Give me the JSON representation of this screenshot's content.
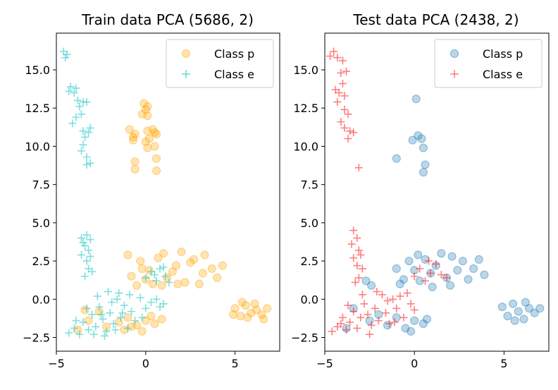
{
  "chart_data": [
    {
      "type": "scatter",
      "title": "Train data PCA (5686, 2)",
      "xlim": [
        -5.0,
        7.5
      ],
      "ylim": [
        -3.4,
        17.4
      ],
      "xticks": [
        -5,
        0,
        5
      ],
      "yticks": [
        -2.5,
        0.0,
        2.5,
        5.0,
        7.5,
        10.0,
        12.5,
        15.0
      ],
      "legend_position": "top-right",
      "series": [
        {
          "name": "Class p",
          "marker": "circle",
          "color": "#ffa500",
          "points": [
            [
              -0.8,
              1.5
            ],
            [
              -0.3,
              2.5
            ],
            [
              0.2,
              1.9
            ],
            [
              0.7,
              2.7
            ],
            [
              1.2,
              1.4
            ],
            [
              1.7,
              2.2
            ],
            [
              2.2,
              1.1
            ],
            [
              2.7,
              2.6
            ],
            [
              3.2,
              1.7
            ],
            [
              3.7,
              2.0
            ],
            [
              -0.5,
              0.9
            ],
            [
              0.4,
              1.0
            ],
            [
              1.0,
              3.0
            ],
            [
              2.0,
              3.1
            ],
            [
              3.0,
              1.0
            ],
            [
              4.0,
              1.4
            ],
            [
              -1.0,
              2.9
            ],
            [
              0.0,
              1.3
            ],
            [
              1.5,
              1.8
            ],
            [
              2.5,
              2.4
            ],
            [
              3.3,
              2.9
            ],
            [
              4.3,
              2.2
            ],
            [
              0.9,
              0.9
            ],
            [
              1.8,
              1.0
            ],
            [
              -0.2,
              2.0
            ],
            [
              -1.5,
              -1.5
            ],
            [
              -1.0,
              -1.2
            ],
            [
              -0.5,
              -1.7
            ],
            [
              0.0,
              -1.4
            ],
            [
              0.5,
              -1.6
            ],
            [
              0.9,
              -1.3
            ],
            [
              -1.2,
              -2.0
            ],
            [
              -0.2,
              -2.1
            ],
            [
              0.3,
              -1.1
            ],
            [
              -0.8,
              -1.8
            ],
            [
              -3.8,
              -2.0
            ],
            [
              -3.2,
              -1.4
            ],
            [
              -2.6,
              -0.8
            ],
            [
              -3.4,
              -0.7
            ],
            [
              -2.2,
              -1.8
            ],
            [
              5.0,
              -0.6
            ],
            [
              5.3,
              -1.1
            ],
            [
              5.6,
              -0.4
            ],
            [
              5.9,
              -0.9
            ],
            [
              6.2,
              -0.7
            ],
            [
              6.5,
              -1.0
            ],
            [
              6.8,
              -0.6
            ],
            [
              5.7,
              -1.2
            ],
            [
              6.1,
              -0.3
            ],
            [
              4.9,
              -1.0
            ],
            [
              6.6,
              -1.3
            ],
            [
              5.4,
              -0.2
            ],
            [
              -0.1,
              12.8
            ],
            [
              0.0,
              12.4
            ],
            [
              0.1,
              12.0
            ],
            [
              -0.2,
              12.1
            ],
            [
              0.1,
              12.6
            ],
            [
              -0.9,
              11.1
            ],
            [
              -0.6,
              10.8
            ],
            [
              -0.7,
              10.4
            ],
            [
              -0.6,
              9.0
            ],
            [
              -0.6,
              8.5
            ],
            [
              -0.7,
              10.6
            ],
            [
              0.0,
              10.3
            ],
            [
              0.2,
              10.5
            ],
            [
              0.1,
              11.0
            ],
            [
              0.4,
              11.1
            ],
            [
              0.6,
              10.8
            ],
            [
              0.5,
              10.0
            ],
            [
              0.6,
              9.2
            ],
            [
              0.6,
              8.4
            ],
            [
              0.5,
              10.9
            ],
            [
              0.1,
              9.9
            ]
          ]
        },
        {
          "name": "Class e",
          "marker": "plus",
          "color": "#00bfbf",
          "points": [
            [
              -4.6,
              16.2
            ],
            [
              -4.5,
              15.8
            ],
            [
              -4.4,
              16.0
            ],
            [
              -4.2,
              13.9
            ],
            [
              -4.3,
              13.6
            ],
            [
              -4.0,
              13.5
            ],
            [
              -3.9,
              13.8
            ],
            [
              -3.8,
              13.0
            ],
            [
              -3.7,
              12.6
            ],
            [
              -3.5,
              12.9
            ],
            [
              -3.3,
              12.9
            ],
            [
              -3.9,
              11.9
            ],
            [
              -3.6,
              12.1
            ],
            [
              -4.1,
              11.5
            ],
            [
              -3.5,
              11.0
            ],
            [
              -3.2,
              10.9
            ],
            [
              -3.1,
              11.2
            ],
            [
              -3.5,
              10.1
            ],
            [
              -3.6,
              9.7
            ],
            [
              -3.3,
              9.3
            ],
            [
              -3.1,
              8.9
            ],
            [
              -3.3,
              8.8
            ],
            [
              -3.4,
              10.6
            ],
            [
              -3.6,
              4.0
            ],
            [
              -3.3,
              4.2
            ],
            [
              -3.1,
              3.9
            ],
            [
              -3.4,
              3.5
            ],
            [
              -3.2,
              3.2
            ],
            [
              -3.6,
              2.9
            ],
            [
              -3.3,
              2.5
            ],
            [
              -3.2,
              2.0
            ],
            [
              -3.0,
              1.8
            ],
            [
              -3.4,
              1.5
            ],
            [
              -3.1,
              2.8
            ],
            [
              -3.5,
              3.7
            ],
            [
              -4.3,
              -2.2
            ],
            [
              -4.0,
              -1.9
            ],
            [
              -3.7,
              -2.3
            ],
            [
              -3.5,
              -1.5
            ],
            [
              -3.2,
              -2.0
            ],
            [
              -3.0,
              -1.0
            ],
            [
              -2.8,
              -1.8
            ],
            [
              -2.6,
              -0.5
            ],
            [
              -2.4,
              -1.3
            ],
            [
              -2.2,
              -2.1
            ],
            [
              -2.0,
              -0.9
            ],
            [
              -1.8,
              -1.6
            ],
            [
              -1.6,
              0.0
            ],
            [
              -1.4,
              -1.2
            ],
            [
              -1.2,
              -0.4
            ],
            [
              -1.0,
              -1.9
            ],
            [
              -0.8,
              -0.8
            ],
            [
              -0.6,
              -1.4
            ],
            [
              -0.3,
              0.1
            ],
            [
              0.0,
              -0.6
            ],
            [
              0.3,
              -0.2
            ],
            [
              0.6,
              0.0
            ],
            [
              0.8,
              -0.5
            ],
            [
              1.0,
              -0.3
            ],
            [
              -2.9,
              -2.3
            ],
            [
              -2.1,
              0.5
            ],
            [
              -1.5,
              0.4
            ],
            [
              -2.5,
              -1.0
            ],
            [
              -1.9,
              -0.2
            ],
            [
              -1.3,
              -0.9
            ],
            [
              -3.9,
              -1.4
            ],
            [
              -0.2,
              -1.2
            ],
            [
              -2.7,
              0.2
            ],
            [
              -2.3,
              -2.4
            ],
            [
              -1.7,
              -2.0
            ],
            [
              -0.9,
              0.3
            ],
            [
              -3.3,
              -0.6
            ],
            [
              0.0,
              1.4
            ],
            [
              0.3,
              1.8
            ],
            [
              0.6,
              1.2
            ],
            [
              0.8,
              2.0
            ],
            [
              1.1,
              1.5
            ],
            [
              1.3,
              1.1
            ],
            [
              1.0,
              2.1
            ],
            [
              0.5,
              1.6
            ]
          ]
        }
      ]
    },
    {
      "type": "scatter",
      "title": "Test data PCA (2438, 2)",
      "xlim": [
        -5.0,
        7.5
      ],
      "ylim": [
        -3.4,
        17.4
      ],
      "xticks": [
        -5,
        0,
        5
      ],
      "yticks": [
        -2.5,
        0.0,
        2.5,
        5.0,
        7.5,
        10.0,
        12.5,
        15.0
      ],
      "legend_position": "top-right",
      "series": [
        {
          "name": "Class p",
          "marker": "circle",
          "color": "#1f77b4",
          "points": [
            [
              0.1,
              13.1
            ],
            [
              -0.1,
              10.4
            ],
            [
              0.2,
              10.7
            ],
            [
              0.4,
              10.5
            ],
            [
              0.5,
              9.9
            ],
            [
              0.6,
              8.8
            ],
            [
              0.5,
              8.3
            ],
            [
              -1.0,
              9.2
            ],
            [
              -1.0,
              2.0
            ],
            [
              -0.6,
              1.3
            ],
            [
              -0.3,
              2.5
            ],
            [
              0.0,
              1.9
            ],
            [
              0.3,
              1.2
            ],
            [
              0.6,
              2.6
            ],
            [
              0.9,
              1.7
            ],
            [
              1.2,
              2.2
            ],
            [
              1.5,
              3.0
            ],
            [
              1.8,
              1.4
            ],
            [
              2.1,
              2.8
            ],
            [
              2.4,
              1.9
            ],
            [
              2.7,
              2.5
            ],
            [
              3.0,
              1.3
            ],
            [
              3.3,
              2.0
            ],
            [
              3.6,
              2.6
            ],
            [
              3.9,
              1.6
            ],
            [
              0.2,
              2.9
            ],
            [
              1.0,
              0.8
            ],
            [
              2.0,
              0.9
            ],
            [
              -0.8,
              1.0
            ],
            [
              -2.7,
              1.2
            ],
            [
              -2.4,
              0.9
            ],
            [
              -2.5,
              -1.4
            ],
            [
              -2.0,
              -1.0
            ],
            [
              -1.5,
              -1.7
            ],
            [
              -1.0,
              -1.2
            ],
            [
              -0.5,
              -1.9
            ],
            [
              0.0,
              -1.4
            ],
            [
              0.5,
              -1.6
            ],
            [
              -3.8,
              -1.9
            ],
            [
              -3.4,
              -0.6
            ],
            [
              -0.2,
              -2.1
            ],
            [
              0.7,
              -1.3
            ],
            [
              4.9,
              -0.5
            ],
            [
              5.2,
              -1.1
            ],
            [
              5.5,
              -0.3
            ],
            [
              5.8,
              -0.8
            ],
            [
              6.1,
              -1.3
            ],
            [
              6.4,
              -0.6
            ],
            [
              6.7,
              -0.9
            ],
            [
              7.0,
              -0.6
            ],
            [
              5.6,
              -1.4
            ],
            [
              6.2,
              -0.2
            ]
          ]
        },
        {
          "name": "Class e",
          "marker": "plus",
          "color": "#ff0000",
          "points": [
            [
              -4.7,
              15.9
            ],
            [
              -4.5,
              16.2
            ],
            [
              -4.3,
              15.8
            ],
            [
              -4.0,
              15.6
            ],
            [
              -4.1,
              14.8
            ],
            [
              -4.0,
              14.1
            ],
            [
              -4.4,
              13.7
            ],
            [
              -4.2,
              13.5
            ],
            [
              -3.9,
              13.3
            ],
            [
              -4.3,
              12.9
            ],
            [
              -3.9,
              12.4
            ],
            [
              -3.7,
              12.1
            ],
            [
              -4.1,
              11.6
            ],
            [
              -3.9,
              11.2
            ],
            [
              -3.6,
              11.0
            ],
            [
              -3.4,
              10.9
            ],
            [
              -3.7,
              10.5
            ],
            [
              -3.1,
              8.6
            ],
            [
              -3.8,
              14.9
            ],
            [
              -3.4,
              4.5
            ],
            [
              -3.2,
              4.0
            ],
            [
              -3.5,
              3.6
            ],
            [
              -3.1,
              3.2
            ],
            [
              -3.4,
              2.7
            ],
            [
              -3.2,
              2.2
            ],
            [
              -2.9,
              2.0
            ],
            [
              -3.1,
              1.4
            ],
            [
              -3.3,
              1.1
            ],
            [
              -3.0,
              2.9
            ],
            [
              -4.6,
              -2.1
            ],
            [
              -4.3,
              -1.8
            ],
            [
              -4.0,
              -1.2
            ],
            [
              -3.8,
              -2.0
            ],
            [
              -3.6,
              -1.5
            ],
            [
              -3.4,
              -0.8
            ],
            [
              -3.2,
              -1.9
            ],
            [
              -3.0,
              -1.2
            ],
            [
              -2.8,
              -0.3
            ],
            [
              -2.6,
              -1.0
            ],
            [
              -2.4,
              -1.7
            ],
            [
              -2.2,
              -0.6
            ],
            [
              -2.0,
              -1.4
            ],
            [
              -1.8,
              0.3
            ],
            [
              -1.6,
              -0.9
            ],
            [
              -1.4,
              -1.6
            ],
            [
              -1.2,
              0.0
            ],
            [
              -1.0,
              -0.6
            ],
            [
              -0.8,
              0.2
            ],
            [
              -0.6,
              -1.2
            ],
            [
              -0.4,
              0.4
            ],
            [
              -0.2,
              -0.3
            ],
            [
              0.0,
              -0.7
            ],
            [
              -2.1,
              0.5
            ],
            [
              -2.9,
              0.3
            ],
            [
              -1.5,
              -0.1
            ],
            [
              -3.7,
              -0.4
            ],
            [
              -4.1,
              -1.6
            ],
            [
              -2.5,
              -2.3
            ],
            [
              -1.1,
              -1.5
            ],
            [
              0.0,
              1.5
            ],
            [
              0.3,
              2.0
            ],
            [
              0.6,
              1.2
            ],
            [
              0.9,
              1.7
            ],
            [
              1.2,
              2.3
            ],
            [
              1.5,
              1.6
            ],
            [
              0.8,
              2.5
            ],
            [
              1.8,
              1.4
            ]
          ]
        }
      ]
    }
  ]
}
